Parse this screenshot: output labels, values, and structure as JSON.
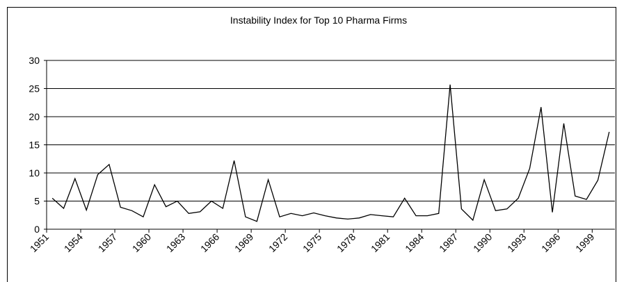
{
  "chart_data": {
    "type": "line",
    "title": "Instability Index for Top 10 Pharma Firms",
    "categories": [
      "1951",
      null,
      null,
      "1954",
      null,
      null,
      "1957",
      null,
      null,
      "1960",
      null,
      null,
      "1963",
      null,
      null,
      "1966",
      null,
      null,
      "1969",
      null,
      null,
      "1972",
      null,
      null,
      "1975",
      null,
      null,
      "1978",
      null,
      null,
      "1981",
      null,
      null,
      "1984",
      null,
      null,
      "1987",
      null,
      null,
      "1990",
      null,
      null,
      "1993",
      null,
      null,
      "1996",
      null,
      null,
      "1999",
      null
    ],
    "values": [
      5.5,
      3.7,
      9.0,
      3.4,
      9.7,
      11.5,
      3.9,
      3.3,
      2.2,
      7.9,
      4.0,
      5.0,
      2.8,
      3.1,
      5.0,
      3.7,
      12.2,
      2.2,
      1.4,
      8.8,
      2.2,
      2.8,
      2.4,
      2.9,
      2.4,
      2.0,
      1.8,
      2.0,
      2.6,
      2.4,
      2.2,
      5.5,
      2.4,
      2.4,
      2.8,
      25.7,
      3.6,
      1.6,
      8.8,
      3.3,
      3.6,
      5.5,
      10.8,
      21.7,
      3.0,
      18.8,
      5.9,
      5.3,
      8.7,
      17.3
    ],
    "color": "#000000",
    "ylim": [
      0,
      30
    ],
    "yticks": [
      0,
      5,
      10,
      15,
      20,
      25,
      30
    ],
    "grid": true
  }
}
